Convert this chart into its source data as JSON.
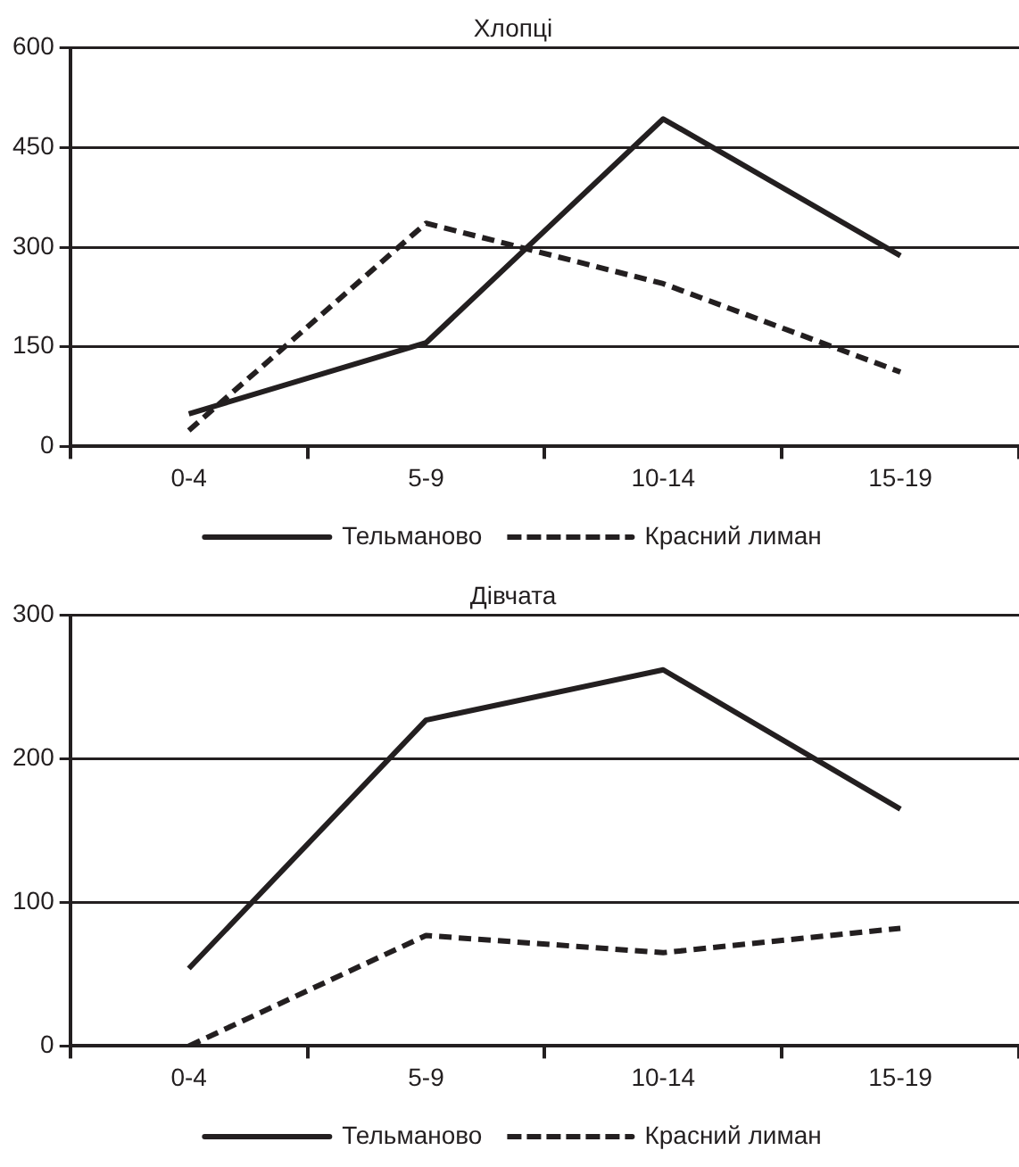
{
  "chart_data": [
    {
      "type": "line",
      "title": "Хлопці",
      "categories": [
        "0-4",
        "5-9",
        "10-14",
        "15-19"
      ],
      "series": [
        {
          "name": "Тельманово",
          "color": "#231f20",
          "values": [
            49,
            156,
            493,
            287
          ],
          "line_style": "solid"
        },
        {
          "name": "Красний лиман",
          "color": "#231f20",
          "values": [
            24,
            336,
            245,
            112
          ],
          "line_style": "dashed"
        }
      ],
      "ylim": [
        0,
        600
      ],
      "yticks": [
        0,
        150,
        300,
        450,
        600
      ],
      "grid": "y",
      "legend": "bottom",
      "marker": "none"
    },
    {
      "type": "line",
      "title": "Дівчата",
      "categories": [
        "0-4",
        "5-9",
        "10-14",
        "15-19"
      ],
      "series": [
        {
          "name": "Тельманово",
          "color": "#231f20",
          "values": [
            54,
            227,
            262,
            165
          ],
          "line_style": "solid"
        },
        {
          "name": "Красний лиман",
          "color": "#231f20",
          "values": [
            0,
            77,
            65,
            82
          ],
          "line_style": "dashed"
        }
      ],
      "ylim": [
        0,
        300
      ],
      "yticks": [
        0,
        100,
        200,
        300
      ],
      "grid": "y",
      "legend": "bottom",
      "marker": "none"
    }
  ]
}
